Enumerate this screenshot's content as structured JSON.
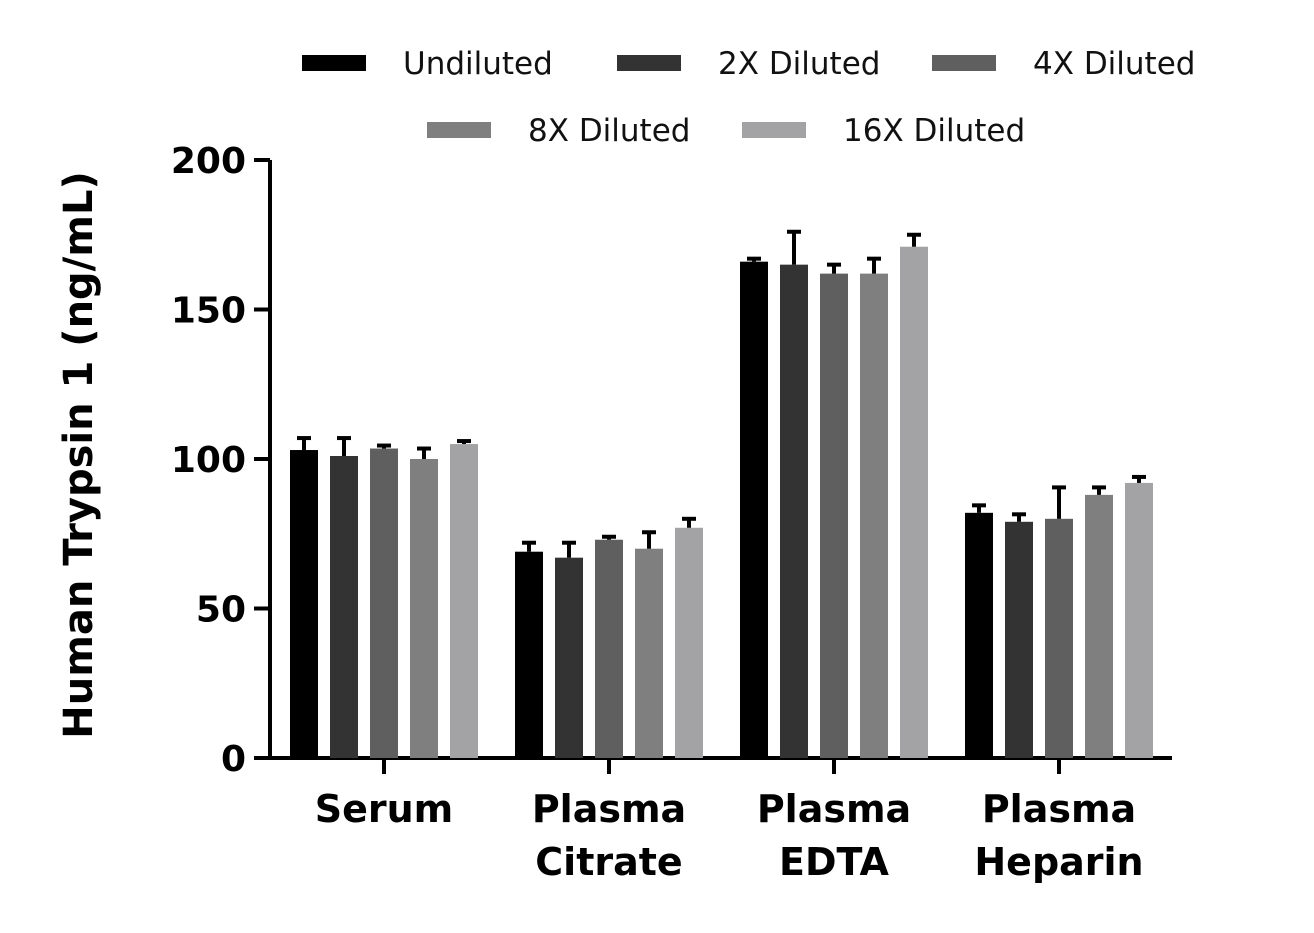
{
  "chart_data": {
    "type": "bar",
    "title": "",
    "xlabel": "",
    "ylabel": "Human Trypsin 1 (ng/mL)",
    "ylim": [
      0,
      200
    ],
    "yticks": [
      "0",
      "50",
      "100",
      "150",
      "200"
    ],
    "grid": false,
    "legend_position": "top",
    "categories": [
      [
        "Serum"
      ],
      [
        "Plasma",
        "Citrate"
      ],
      [
        "Plasma",
        "EDTA"
      ],
      [
        "Plasma",
        "Heparin"
      ]
    ],
    "series": [
      {
        "name": "Undiluted",
        "color": "#000000",
        "values": [
          103,
          69,
          166,
          82
        ],
        "errors": [
          4,
          3,
          1,
          2.5
        ]
      },
      {
        "name": "2X Diluted",
        "color": "#333333",
        "values": [
          101,
          67,
          165,
          79
        ],
        "errors": [
          6,
          5,
          11,
          2.5
        ]
      },
      {
        "name": "4X Diluted",
        "color": "#5f5f5f",
        "values": [
          103.5,
          73,
          162,
          80
        ],
        "errors": [
          1,
          1,
          3,
          10.5
        ]
      },
      {
        "name": "8X Diluted",
        "color": "#7f7f7f",
        "values": [
          100,
          70,
          162,
          88
        ],
        "errors": [
          3.5,
          5.5,
          5,
          2.5
        ]
      },
      {
        "name": "16X Diluted",
        "color": "#a3a3a5",
        "values": [
          105,
          77,
          171,
          92
        ],
        "errors": [
          1,
          3,
          4,
          2
        ]
      }
    ]
  }
}
